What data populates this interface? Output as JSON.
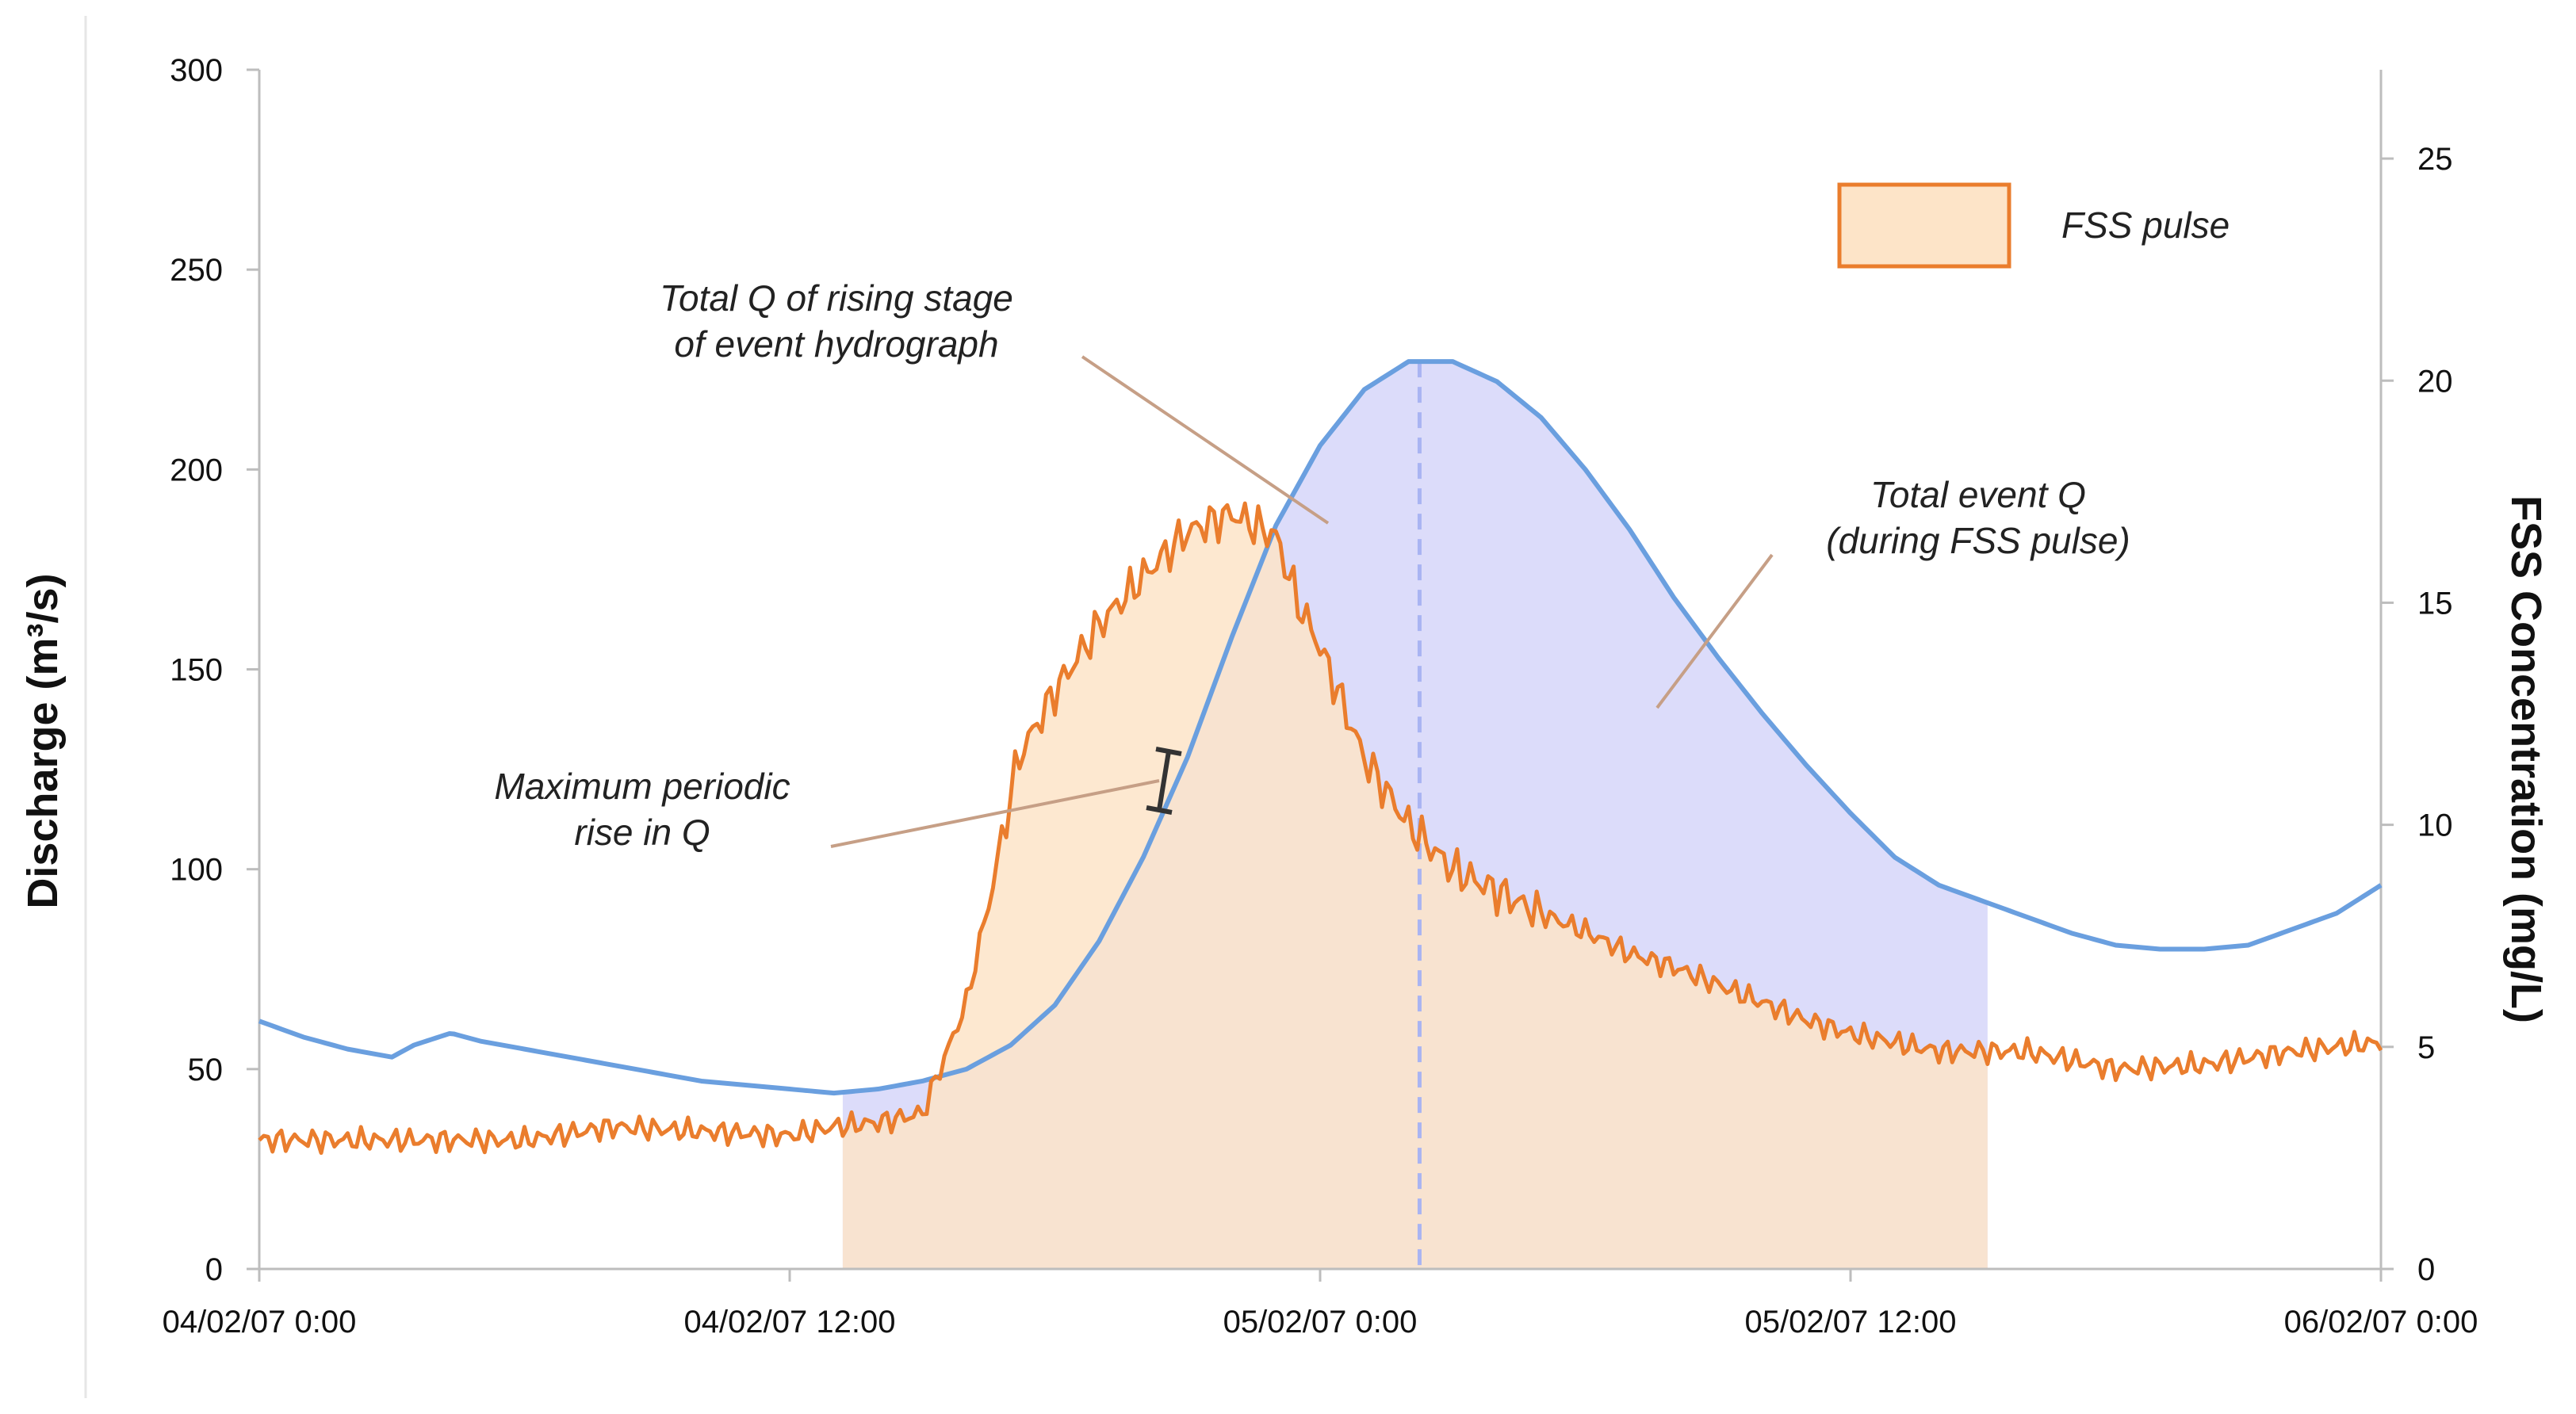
{
  "chart_data": {
    "type": "area",
    "title": "",
    "xlabel": "",
    "ylabel_left": "Discharge (m³/s)",
    "ylabel_right": "FSS Concentration (mg/L)",
    "x_axis": {
      "type": "time",
      "start": "2007-02-04T00:00",
      "end": "2007-02-06T00:00",
      "tick_step_hours": 12,
      "tick_labels": [
        "04/02/07 0:00",
        "04/02/07 12:00",
        "05/02/07 0:00",
        "05/02/07 12:00",
        "06/02/07 0:00"
      ]
    },
    "y_left": {
      "range": [
        0,
        300
      ],
      "ticks": [
        0,
        50,
        100,
        150,
        200,
        250,
        300
      ]
    },
    "y_right": {
      "range": [
        0,
        27
      ],
      "ticks": [
        0,
        5,
        10,
        15,
        20,
        25
      ]
    },
    "grid": false,
    "legend": {
      "position": "top-right",
      "entries": [
        {
          "label": "FSS pulse",
          "color": "#f5b266"
        }
      ]
    },
    "shaded_regions": [
      {
        "name": "FSS pulse",
        "from": "2007-02-04T13:10",
        "to": "2007-02-05T15:10",
        "fill": "#fde4c8"
      },
      {
        "name": "Total event Q (during FSS pulse)",
        "from": "2007-02-04T13:10",
        "to": "2007-02-05T15:10",
        "fill": "#dcdcfa"
      }
    ],
    "peak_marker": {
      "x": "2007-02-05T02:15",
      "style": "dashed"
    },
    "series": [
      {
        "axis": "left",
        "color": "#6a9fdf",
        "points": [
          [
            "2007-02-04T00:00",
            62
          ],
          [
            "2007-02-04T01:00",
            58
          ],
          [
            "2007-02-04T02:00",
            55
          ],
          [
            "2007-02-04T03:00",
            53
          ],
          [
            "2007-02-04T03:30",
            56
          ],
          [
            "2007-02-04T04:20",
            59
          ],
          [
            "2007-02-04T05:00",
            57
          ],
          [
            "2007-02-04T06:00",
            55
          ],
          [
            "2007-02-04T07:00",
            53
          ],
          [
            "2007-02-04T08:00",
            51
          ],
          [
            "2007-02-04T09:00",
            49
          ],
          [
            "2007-02-04T10:00",
            47
          ],
          [
            "2007-02-04T11:00",
            46
          ],
          [
            "2007-02-04T12:00",
            45
          ],
          [
            "2007-02-04T13:00",
            44
          ],
          [
            "2007-02-04T14:00",
            45
          ],
          [
            "2007-02-04T15:00",
            47
          ],
          [
            "2007-02-04T16:00",
            50
          ],
          [
            "2007-02-04T17:00",
            56
          ],
          [
            "2007-02-04T18:00",
            66
          ],
          [
            "2007-02-04T19:00",
            82
          ],
          [
            "2007-02-04T20:00",
            103
          ],
          [
            "2007-02-04T21:00",
            128
          ],
          [
            "2007-02-04T22:00",
            158
          ],
          [
            "2007-02-04T23:00",
            186
          ],
          [
            "2007-02-05T00:00",
            206
          ],
          [
            "2007-02-05T01:00",
            220
          ],
          [
            "2007-02-05T02:00",
            227
          ],
          [
            "2007-02-05T03:00",
            227
          ],
          [
            "2007-02-05T04:00",
            222
          ],
          [
            "2007-02-05T05:00",
            213
          ],
          [
            "2007-02-05T06:00",
            200
          ],
          [
            "2007-02-05T07:00",
            185
          ],
          [
            "2007-02-05T08:00",
            168
          ],
          [
            "2007-02-05T09:00",
            153
          ],
          [
            "2007-02-05T10:00",
            139
          ],
          [
            "2007-02-05T11:00",
            126
          ],
          [
            "2007-02-05T12:00",
            114
          ],
          [
            "2007-02-05T13:00",
            103
          ],
          [
            "2007-02-05T14:00",
            96
          ],
          [
            "2007-02-05T15:00",
            92
          ],
          [
            "2007-02-05T16:00",
            88
          ],
          [
            "2007-02-05T17:00",
            84
          ],
          [
            "2007-02-05T18:00",
            81
          ],
          [
            "2007-02-05T19:00",
            80
          ],
          [
            "2007-02-05T20:00",
            80
          ],
          [
            "2007-02-05T21:00",
            81
          ],
          [
            "2007-02-05T22:00",
            85
          ],
          [
            "2007-02-05T23:00",
            89
          ],
          [
            "2007-02-06T00:00",
            96
          ]
        ]
      },
      {
        "axis": "right",
        "color": "#ea7d2d",
        "points": [
          [
            "2007-02-04T00:00",
            2.9
          ],
          [
            "2007-02-04T02:00",
            2.9
          ],
          [
            "2007-02-04T04:00",
            2.9
          ],
          [
            "2007-02-04T06:00",
            2.9
          ],
          [
            "2007-02-04T08:00",
            3.2
          ],
          [
            "2007-02-04T10:00",
            3.1
          ],
          [
            "2007-02-04T12:00",
            3.0
          ],
          [
            "2007-02-04T13:00",
            3.2
          ],
          [
            "2007-02-04T14:00",
            3.3
          ],
          [
            "2007-02-04T15:00",
            3.5
          ],
          [
            "2007-02-04T16:00",
            6.0
          ],
          [
            "2007-02-04T16:40",
            9.0
          ],
          [
            "2007-02-04T17:10",
            11.5
          ],
          [
            "2007-02-04T18:00",
            13.0
          ],
          [
            "2007-02-04T19:00",
            14.5
          ],
          [
            "2007-02-04T20:00",
            15.6
          ],
          [
            "2007-02-04T21:00",
            16.6
          ],
          [
            "2007-02-04T22:00",
            17.0
          ],
          [
            "2007-02-04T23:00",
            16.5
          ],
          [
            "2007-02-04T23:30",
            15.0
          ],
          [
            "2007-02-05T00:00",
            14.0
          ],
          [
            "2007-02-05T01:00",
            11.5
          ],
          [
            "2007-02-05T02:00",
            10.0
          ],
          [
            "2007-02-05T03:00",
            9.0
          ],
          [
            "2007-02-05T04:00",
            8.5
          ],
          [
            "2007-02-05T05:00",
            8.0
          ],
          [
            "2007-02-05T06:00",
            7.6
          ],
          [
            "2007-02-05T07:00",
            7.1
          ],
          [
            "2007-02-05T08:00",
            6.8
          ],
          [
            "2007-02-05T09:00",
            6.4
          ],
          [
            "2007-02-05T10:00",
            6.0
          ],
          [
            "2007-02-05T11:00",
            5.6
          ],
          [
            "2007-02-05T12:00",
            5.3
          ],
          [
            "2007-02-05T13:00",
            5.1
          ],
          [
            "2007-02-05T14:00",
            4.9
          ],
          [
            "2007-02-05T15:00",
            4.9
          ],
          [
            "2007-02-05T16:00",
            4.9
          ],
          [
            "2007-02-05T18:00",
            4.5
          ],
          [
            "2007-02-05T20:00",
            4.6
          ],
          [
            "2007-02-05T22:00",
            4.9
          ],
          [
            "2007-02-06T00:00",
            5.1
          ]
        ]
      }
    ],
    "annotations": [
      {
        "text": [
          "Total Q of rising stage",
          "of event hydrograph"
        ]
      },
      {
        "text": [
          "Total event Q",
          "(during FSS pulse)"
        ]
      },
      {
        "text": [
          "Maximum periodic",
          "rise in Q"
        ]
      }
    ]
  }
}
